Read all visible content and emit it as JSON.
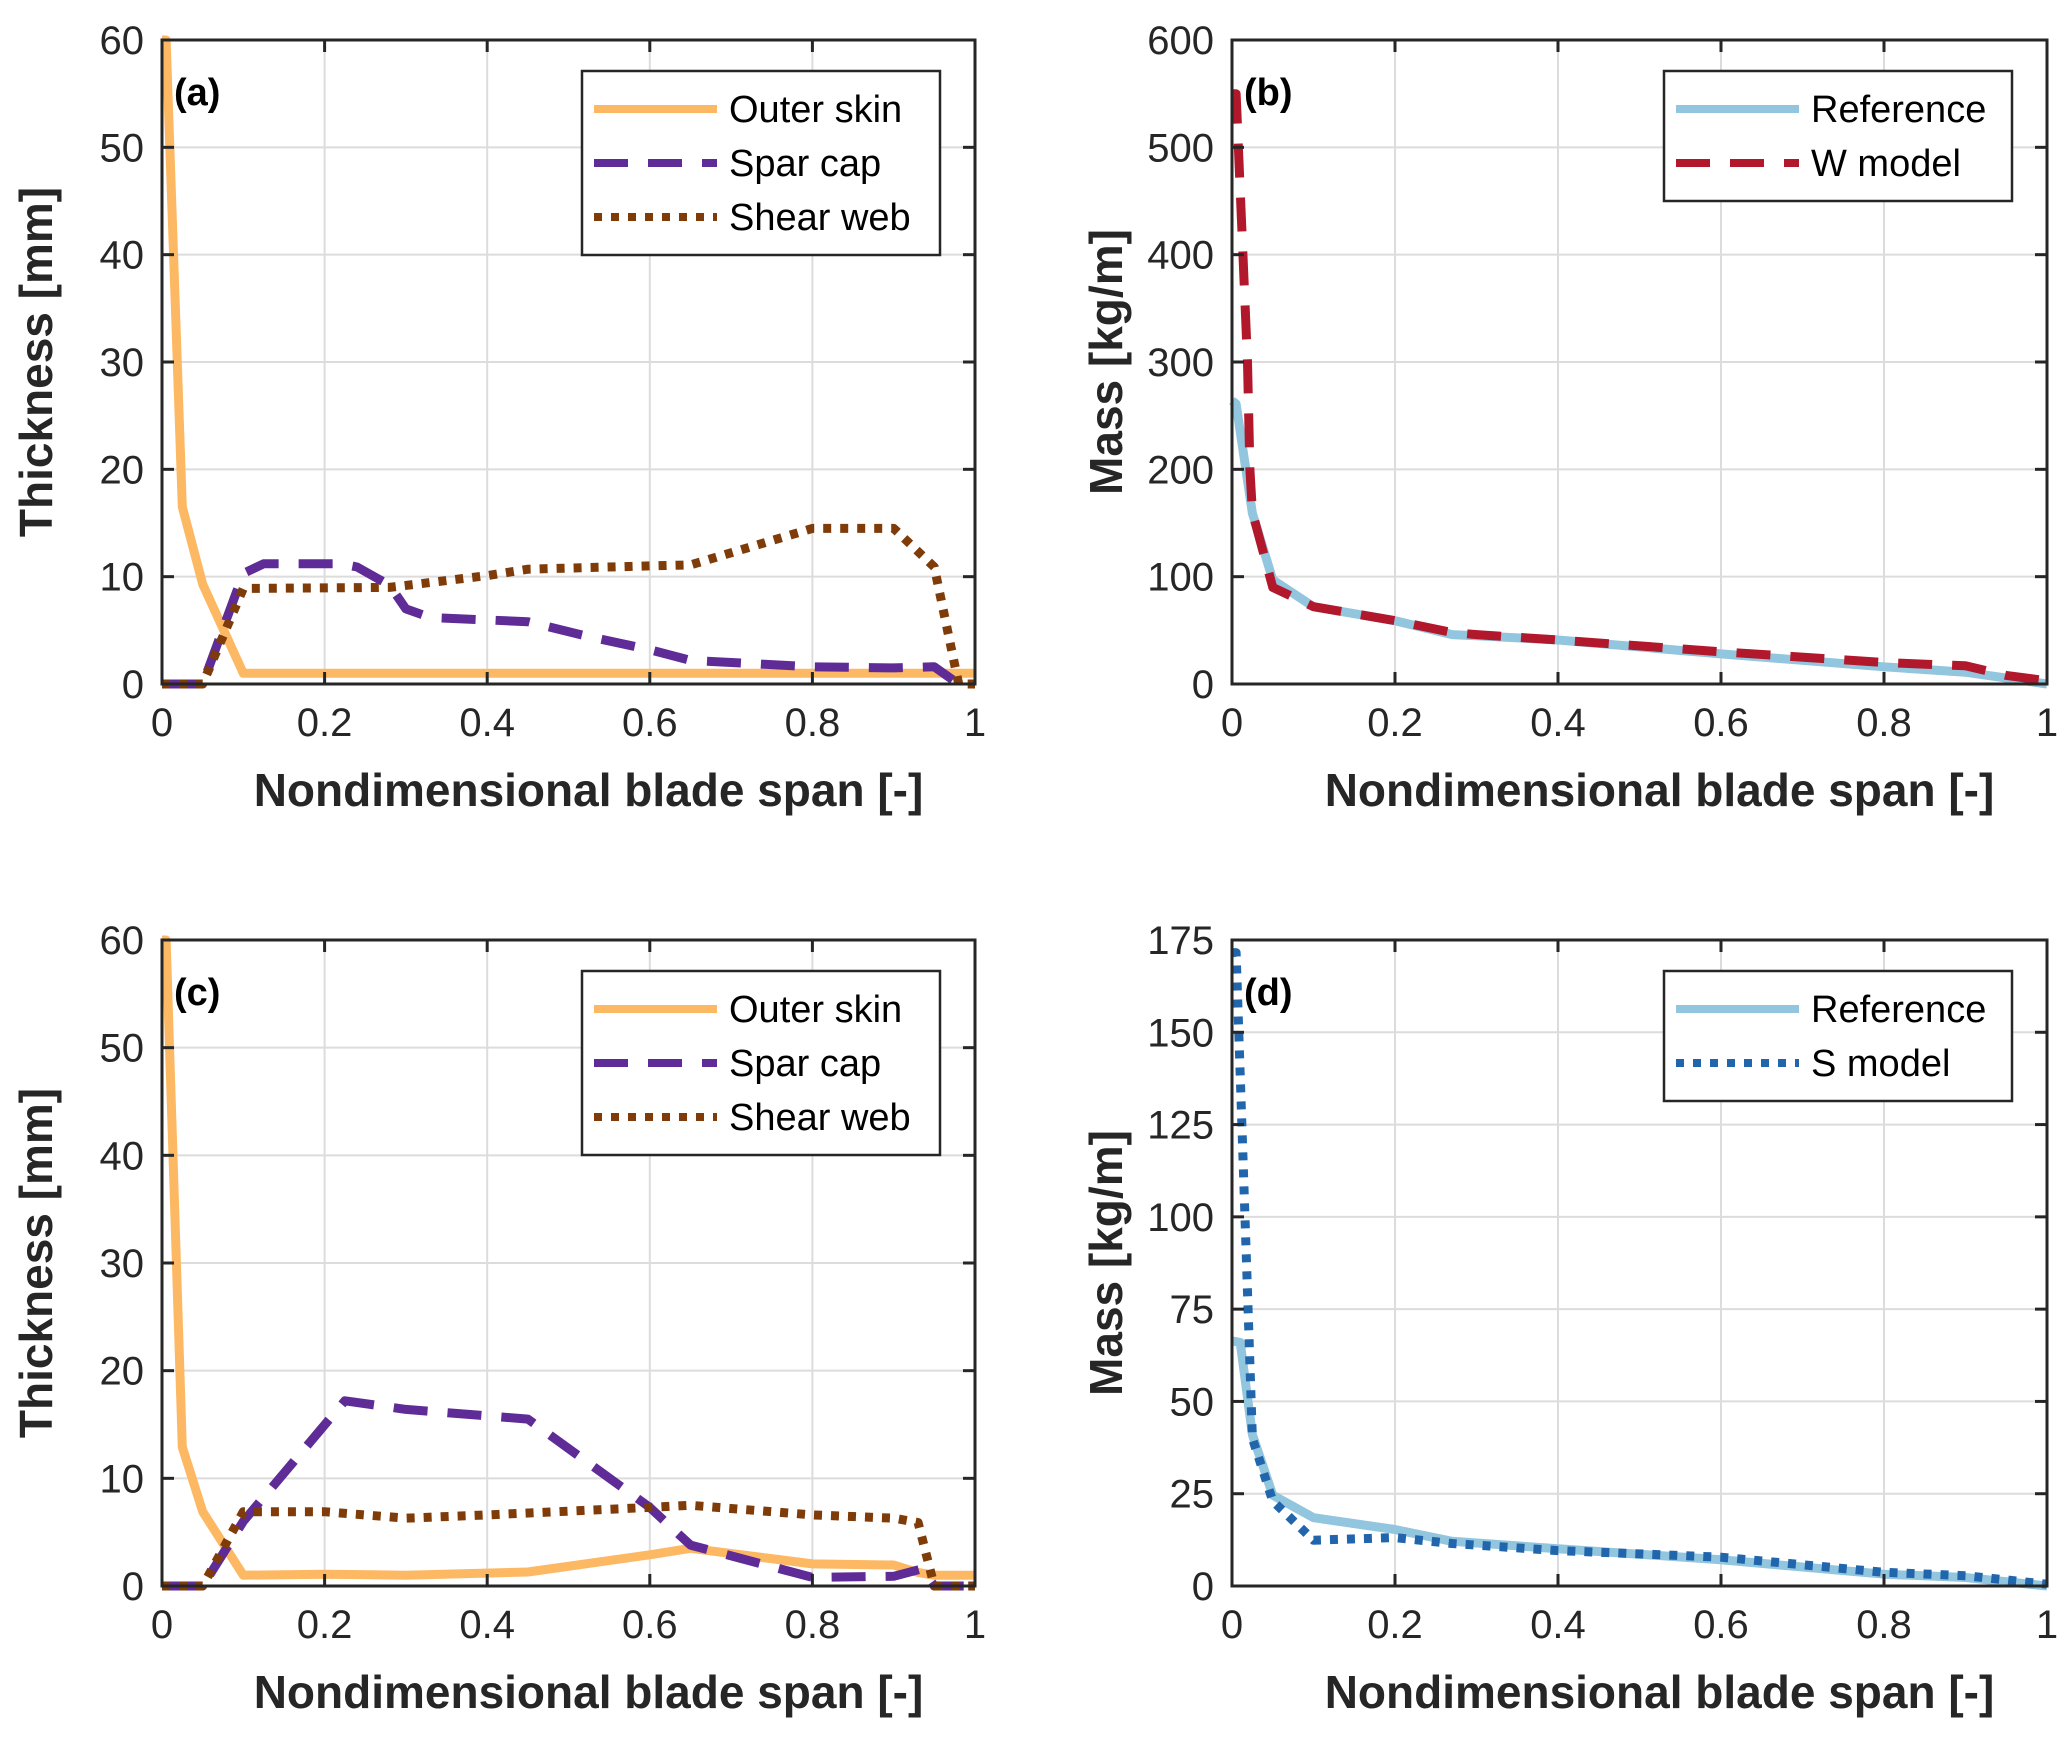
{
  "figure": {
    "grid": true,
    "layout": "2x2"
  },
  "chart_data": [
    {
      "id": "a",
      "panel_label": "(a)",
      "type": "line",
      "title": "",
      "xlabel": "Nondimensional blade span [-]",
      "ylabel": "Thickness [mm]",
      "xlim": [
        0,
        1
      ],
      "ylim": [
        0,
        60
      ],
      "xticks": [
        0,
        0.2,
        0.4,
        0.6,
        0.8,
        1
      ],
      "xtick_labels": [
        "0",
        "0.2",
        "0.4",
        "0.6",
        "0.8",
        "1"
      ],
      "yticks": [
        0,
        10,
        20,
        30,
        40,
        50,
        60
      ],
      "ytick_labels": [
        "0",
        "10",
        "20",
        "30",
        "40",
        "50",
        "60"
      ],
      "legend_position": "top-right",
      "series": [
        {
          "name": "Outer skin",
          "color": "#FDB863",
          "style": "solid",
          "x": [
            0,
            0.005,
            0.025,
            0.05,
            0.1,
            0.2,
            0.4,
            0.6,
            0.8,
            0.9,
            1.0
          ],
          "y": [
            60,
            60,
            16.5,
            9.3,
            1.0,
            1.0,
            1.0,
            1.0,
            1.0,
            1.0,
            1.0
          ]
        },
        {
          "name": "Spar cap",
          "color": "#5E2B97",
          "style": "dashed",
          "x": [
            0,
            0.05,
            0.1,
            0.125,
            0.22,
            0.24,
            0.28,
            0.3,
            0.33,
            0.45,
            0.52,
            0.6,
            0.65,
            0.8,
            0.9,
            0.95,
            0.98,
            1.0
          ],
          "y": [
            0,
            0,
            10.3,
            11.2,
            11.2,
            10.9,
            9.2,
            7.0,
            6.2,
            5.8,
            4.5,
            3.2,
            2.2,
            1.6,
            1.5,
            1.6,
            0,
            0
          ]
        },
        {
          "name": "Shear web",
          "color": "#7F3B08",
          "style": "dotted",
          "x": [
            0,
            0.05,
            0.1,
            0.28,
            0.4,
            0.45,
            0.6,
            0.65,
            0.8,
            0.9,
            0.95,
            0.98,
            1.0
          ],
          "y": [
            0,
            0,
            8.9,
            9.0,
            10.1,
            10.7,
            11.0,
            11.1,
            14.5,
            14.5,
            10.9,
            0,
            0
          ]
        }
      ]
    },
    {
      "id": "b",
      "panel_label": "(b)",
      "type": "line",
      "title": "",
      "xlabel": "Nondimensional blade span [-]",
      "ylabel": "Mass [kg/m]",
      "xlim": [
        0,
        1
      ],
      "ylim": [
        0,
        600
      ],
      "xticks": [
        0,
        0.2,
        0.4,
        0.6,
        0.8,
        1
      ],
      "xtick_labels": [
        "0",
        "0.2",
        "0.4",
        "0.6",
        "0.8",
        "1"
      ],
      "yticks": [
        0,
        100,
        200,
        300,
        400,
        500,
        600
      ],
      "ytick_labels": [
        "0",
        "100",
        "200",
        "300",
        "400",
        "500",
        "600"
      ],
      "legend_position": "top-right",
      "series": [
        {
          "name": "Reference",
          "color": "#92C5DE",
          "style": "solid",
          "x": [
            0,
            0.005,
            0.025,
            0.05,
            0.1,
            0.2,
            0.27,
            0.3,
            0.4,
            0.6,
            0.8,
            0.9,
            1.0
          ],
          "y": [
            264,
            261,
            159,
            97,
            72,
            59,
            46,
            45,
            41,
            28,
            16,
            11,
            0
          ]
        },
        {
          "name": "W model",
          "color": "#B2182B",
          "style": "dashed",
          "x": [
            0,
            0.005,
            0.019,
            0.022,
            0.025,
            0.05,
            0.1,
            0.2,
            0.27,
            0.3,
            0.4,
            0.6,
            0.8,
            0.9,
            0.95,
            1.0
          ],
          "y": [
            550,
            550,
            300,
            200,
            160,
            90,
            72,
            59,
            48,
            46,
            41,
            30,
            20,
            17,
            8,
            3
          ]
        }
      ]
    },
    {
      "id": "c",
      "panel_label": "(c)",
      "type": "line",
      "title": "",
      "xlabel": "Nondimensional blade span [-]",
      "ylabel": "Thickness [mm]",
      "xlim": [
        0,
        1
      ],
      "ylim": [
        0,
        60
      ],
      "xticks": [
        0,
        0.2,
        0.4,
        0.6,
        0.8,
        1
      ],
      "xtick_labels": [
        "0",
        "0.2",
        "0.4",
        "0.6",
        "0.8",
        "1"
      ],
      "yticks": [
        0,
        10,
        20,
        30,
        40,
        50,
        60
      ],
      "ytick_labels": [
        "0",
        "10",
        "20",
        "30",
        "40",
        "50",
        "60"
      ],
      "legend_position": "top-right",
      "series": [
        {
          "name": "Outer skin",
          "color": "#FDB863",
          "style": "solid",
          "x": [
            0,
            0.005,
            0.025,
            0.05,
            0.1,
            0.2,
            0.3,
            0.45,
            0.6,
            0.65,
            0.8,
            0.9,
            0.93,
            0.95,
            1.0
          ],
          "y": [
            60,
            60,
            12.9,
            6.9,
            1.0,
            1.1,
            1.0,
            1.3,
            2.9,
            3.5,
            2.05,
            1.95,
            1.25,
            1.0,
            1.0
          ]
        },
        {
          "name": "Spar cap",
          "color": "#5E2B97",
          "style": "dashed",
          "x": [
            0,
            0.05,
            0.1,
            0.225,
            0.3,
            0.45,
            0.6,
            0.65,
            0.8,
            0.9,
            0.935,
            0.95,
            1.0
          ],
          "y": [
            0,
            0,
            6.0,
            17.2,
            16.4,
            15.5,
            7.3,
            3.8,
            0.8,
            0.9,
            1.6,
            0,
            0
          ]
        },
        {
          "name": "Shear web",
          "color": "#7F3B08",
          "style": "dotted",
          "x": [
            0,
            0.05,
            0.1,
            0.2,
            0.3,
            0.4,
            0.6,
            0.65,
            0.8,
            0.9,
            0.93,
            0.95,
            1.0
          ],
          "y": [
            0,
            0,
            6.9,
            6.9,
            6.3,
            6.6,
            7.3,
            7.5,
            6.6,
            6.3,
            5.9,
            0,
            0
          ]
        }
      ]
    },
    {
      "id": "d",
      "panel_label": "(d)",
      "type": "line",
      "title": "",
      "xlabel": "Nondimensional blade span [-]",
      "ylabel": "Mass [kg/m]",
      "xlim": [
        0,
        1
      ],
      "ylim": [
        0,
        175
      ],
      "xticks": [
        0,
        0.2,
        0.4,
        0.6,
        0.8,
        1
      ],
      "xtick_labels": [
        "0",
        "0.2",
        "0.4",
        "0.6",
        "0.8",
        "1"
      ],
      "yticks": [
        0,
        25,
        50,
        75,
        100,
        125,
        150,
        175
      ],
      "ytick_labels": [
        "0",
        "25",
        "50",
        "75",
        "100",
        "125",
        "150",
        "175"
      ],
      "legend_position": "top-right",
      "series": [
        {
          "name": "Reference",
          "color": "#92C5DE",
          "style": "solid",
          "x": [
            0,
            0.01,
            0.025,
            0.05,
            0.1,
            0.2,
            0.27,
            0.4,
            0.6,
            0.8,
            0.9,
            1.0
          ],
          "y": [
            66.4,
            66,
            41,
            24.6,
            18.5,
            15.3,
            12.1,
            10.1,
            7.1,
            3.2,
            2.3,
            0
          ]
        },
        {
          "name": "S model",
          "color": "#2166AC",
          "style": "dotted",
          "x": [
            0,
            0.005,
            0.025,
            0.05,
            0.1,
            0.2,
            0.27,
            0.4,
            0.6,
            0.8,
            0.9,
            1.0
          ],
          "y": [
            171.6,
            171.6,
            40,
            23,
            12.4,
            13.1,
            11.5,
            9.6,
            7.8,
            3.7,
            2.8,
            0.5
          ]
        }
      ]
    }
  ]
}
